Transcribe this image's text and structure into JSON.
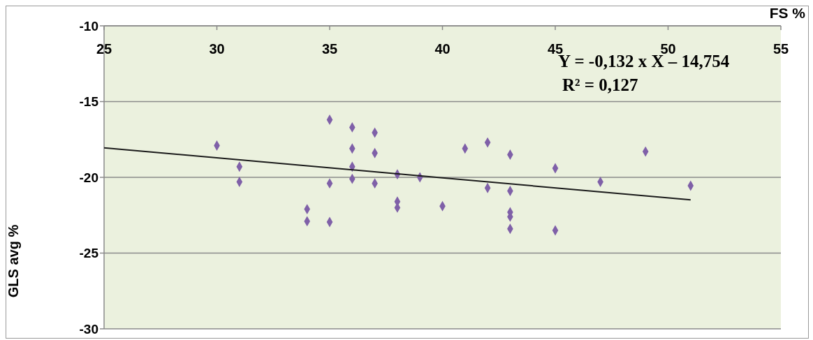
{
  "chart_data": {
    "type": "scatter",
    "xlabel": "FS %",
    "ylabel": "GLS avg %",
    "xlim": [
      25,
      55
    ],
    "xticks": [
      25,
      30,
      35,
      40,
      45,
      50,
      55
    ],
    "ylim": [
      -30,
      -10
    ],
    "yticks": [
      -10,
      -15,
      -20,
      -25,
      -30
    ],
    "grid": "y",
    "legend": false,
    "marker": "diamond",
    "annotations": [
      "Y = -0,132 x X – 14,754",
      "R² = 0,127"
    ],
    "series": [
      {
        "color": "#7f60a8",
        "x": [
          30,
          31,
          31,
          34,
          34,
          35,
          35,
          35,
          36,
          36,
          36,
          36,
          37,
          37,
          37,
          38,
          38,
          38,
          39,
          40,
          41,
          42,
          42,
          43,
          43,
          43,
          43,
          43,
          45,
          45,
          47,
          49,
          51
        ],
        "values": [
          -17.9,
          -19.3,
          -20.3,
          -22.1,
          -22.9,
          -16.2,
          -20.4,
          -22.95,
          -16.7,
          -18.1,
          -19.3,
          -20.1,
          -17.05,
          -18.4,
          -20.4,
          -19.8,
          -21.6,
          -22.0,
          -20.0,
          -21.9,
          -18.1,
          -17.7,
          -20.7,
          -18.5,
          -20.9,
          -22.3,
          -22.6,
          -23.4,
          -19.4,
          -23.5,
          -20.3,
          -18.3,
          -20.55
        ]
      },
      {
        "type": "line",
        "color": "#1a1a1a",
        "marker": "none",
        "x": [
          25,
          51
        ],
        "values": [
          -18.05,
          -21.49
        ]
      }
    ]
  }
}
